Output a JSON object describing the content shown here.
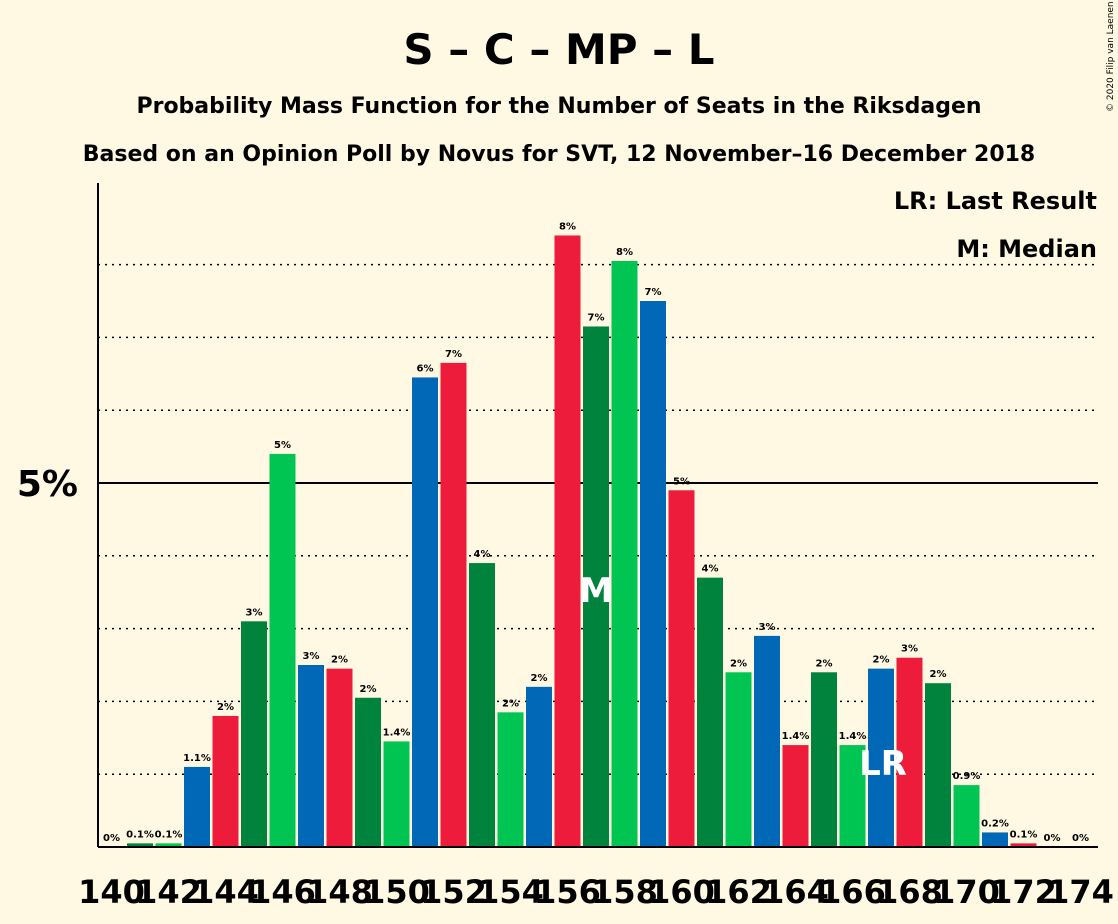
{
  "copyright": "© 2020 Filip van Laenen",
  "chart_data": {
    "type": "bar",
    "title": "S – C – MP – L",
    "subtitle": "Probability Mass Function for the Number of Seats in the Riksdagen",
    "subtitle2": "Based on an Opinion Poll by Novus for SVT, 12 November–16 December 2018",
    "legend": [
      "LR: Last Result",
      "M: Median"
    ],
    "legend_position": "top-right",
    "y_tick_label": "5%",
    "y_tick_value": 5,
    "ylim": [
      0,
      9
    ],
    "x_tick_labels": [
      "140",
      "142",
      "144",
      "146",
      "148",
      "150",
      "152",
      "154",
      "156",
      "158",
      "160",
      "162",
      "164",
      "166",
      "168",
      "170",
      "172",
      "174"
    ],
    "median_seat": 157,
    "median_label": "M",
    "last_result_seat": 167,
    "last_result_label": "LR",
    "colors": [
      "#0068B6",
      "#ED1C3A",
      "#00843D",
      "#00C553"
    ],
    "seats": [
      140,
      141,
      142,
      143,
      144,
      145,
      146,
      147,
      148,
      149,
      150,
      151,
      152,
      153,
      154,
      155,
      156,
      157,
      158,
      159,
      160,
      161,
      162,
      163,
      164,
      165,
      166,
      167,
      168,
      169,
      170,
      171,
      172,
      173,
      174
    ],
    "values": [
      0.0,
      0.05,
      0.05,
      1.1,
      1.8,
      3.1,
      5.4,
      2.5,
      2.45,
      2.05,
      1.45,
      6.45,
      6.65,
      3.9,
      1.85,
      2.2,
      8.4,
      7.15,
      8.05,
      7.5,
      4.9,
      3.7,
      2.4,
      2.9,
      1.4,
      2.4,
      1.4,
      2.45,
      2.6,
      2.25,
      0.85,
      0.2,
      0.05,
      0.0,
      0.0
    ],
    "bar_colors": [
      2,
      2,
      3,
      0,
      1,
      2,
      3,
      0,
      1,
      2,
      3,
      0,
      1,
      2,
      3,
      0,
      1,
      2,
      3,
      0,
      1,
      2,
      3,
      0,
      1,
      2,
      3,
      0,
      1,
      2,
      3,
      0,
      1,
      2,
      3
    ],
    "value_labels": [
      "0%",
      "0.1%",
      "0.1%",
      "1.1%",
      "2%",
      "3%",
      "5%",
      "3%",
      "2%",
      "2%",
      "1.4%",
      "6%",
      "7%",
      "4%",
      "2%",
      "2%",
      "8%",
      "7%",
      "8%",
      "7%",
      "5%",
      "4%",
      "2%",
      "3%",
      "1.4%",
      "2%",
      "1.4%",
      "2%",
      "3%",
      "2%",
      "0.9%",
      "0.2%",
      "0.1%",
      "0%",
      "0%"
    ]
  }
}
